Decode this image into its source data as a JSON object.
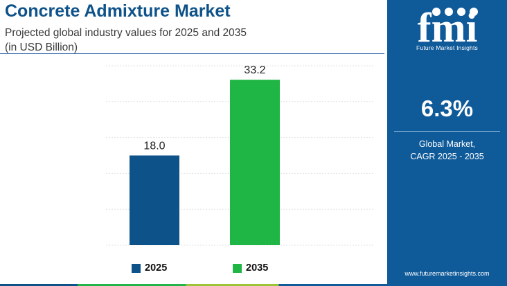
{
  "header": {
    "title": "Concrete Admixture Market",
    "subtitle_line1": "Projected global industry values for 2025 and 2035",
    "subtitle_line2": "(in USD Billion)"
  },
  "chart_data": {
    "type": "bar",
    "categories": [
      "2025",
      "2035"
    ],
    "values": [
      18.0,
      33.2
    ],
    "value_labels": [
      "18.0",
      "33.2"
    ],
    "colors": [
      "#0d5289",
      "#20b646"
    ],
    "ylim": [
      0,
      36
    ],
    "grid": true,
    "legend_placement": "bottom"
  },
  "panel": {
    "logo_text": "fmi",
    "logo_tagline": "Future Market Insights",
    "cagr_value": "6.3%",
    "cagr_label_line1": "Global Market,",
    "cagr_label_line2": "CAGR 2025 - 2035",
    "website": "www.futuremarketinsights.com",
    "background_color": "#0f5a99"
  }
}
